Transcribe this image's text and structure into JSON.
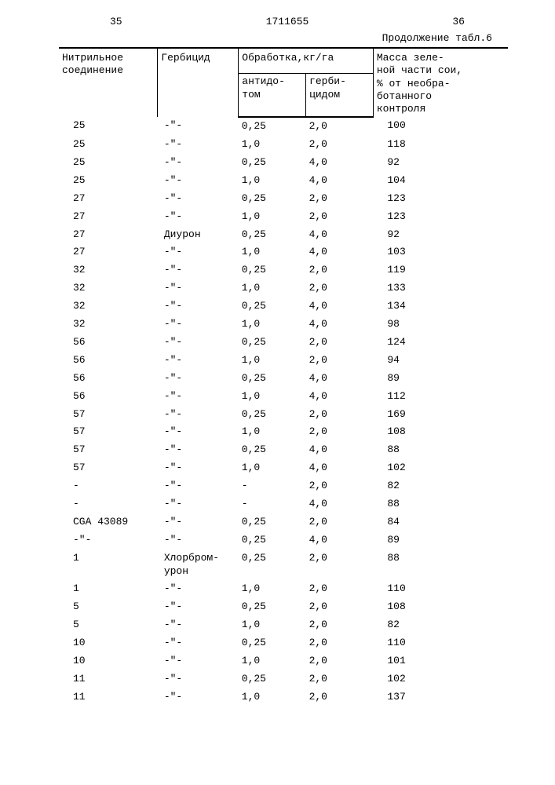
{
  "page_left_num": "35",
  "doc_num": "1711655",
  "page_right_num": "36",
  "continuation": "Продолжение табл.6",
  "headers": {
    "col1": "Нитрильное соединение",
    "col2": "Гербицид",
    "group34": "Обработка,кг/га",
    "col3": "антидо-\nтом",
    "col4": "герби-\nцидом",
    "col5": "Масса зеле-\nной части сои,\n% от необра-\nботанного\nконтроля"
  },
  "rows": [
    {
      "c1": "25",
      "c2": "-\"-",
      "c3": "0,25",
      "c4": "2,0",
      "c5": "100"
    },
    {
      "c1": "25",
      "c2": "-\"-",
      "c3": "1,0",
      "c4": "2,0",
      "c5": "118"
    },
    {
      "c1": "25",
      "c2": "-\"-",
      "c3": "0,25",
      "c4": "4,0",
      "c5": "92"
    },
    {
      "c1": "25",
      "c2": "-\"-",
      "c3": "1,0",
      "c4": "4,0",
      "c5": "104"
    },
    {
      "c1": "27",
      "c2": "-\"-",
      "c3": "0,25",
      "c4": "2,0",
      "c5": "123"
    },
    {
      "c1": "27",
      "c2": "-\"-",
      "c3": "1,0",
      "c4": "2,0",
      "c5": "123"
    },
    {
      "c1": "27",
      "c2": "Диурон",
      "c3": "0,25",
      "c4": "4,0",
      "c5": "92"
    },
    {
      "c1": "27",
      "c2": "-\"-",
      "c3": "1,0",
      "c4": "4,0",
      "c5": "103"
    },
    {
      "c1": "32",
      "c2": "-\"-",
      "c3": "0,25",
      "c4": "2,0",
      "c5": "119"
    },
    {
      "c1": "32",
      "c2": "-\"-",
      "c3": "1,0",
      "c4": "2,0",
      "c5": "133"
    },
    {
      "c1": "32",
      "c2": "-\"-",
      "c3": "0,25",
      "c4": "4,0",
      "c5": "134"
    },
    {
      "c1": "32",
      "c2": "-\"-",
      "c3": "1,0",
      "c4": "4,0",
      "c5": "98"
    },
    {
      "c1": "56",
      "c2": "-\"-",
      "c3": "0,25",
      "c4": "2,0",
      "c5": "124"
    },
    {
      "c1": "56",
      "c2": "-\"-",
      "c3": "1,0",
      "c4": "2,0",
      "c5": "94"
    },
    {
      "c1": "56",
      "c2": "-\"-",
      "c3": "0,25",
      "c4": "4,0",
      "c5": "89"
    },
    {
      "c1": "56",
      "c2": "-\"-",
      "c3": "1,0",
      "c4": "4,0",
      "c5": "112"
    },
    {
      "c1": "57",
      "c2": "-\"-",
      "c3": "0,25",
      "c4": "2,0",
      "c5": "169"
    },
    {
      "c1": "57",
      "c2": "-\"-",
      "c3": "1,0",
      "c4": "2,0",
      "c5": "108"
    },
    {
      "c1": "57",
      "c2": "-\"-",
      "c3": "0,25",
      "c4": "4,0",
      "c5": "88"
    },
    {
      "c1": "57",
      "c2": "-\"-",
      "c3": "1,0",
      "c4": "4,0",
      "c5": "102"
    },
    {
      "c1": "-",
      "c2": "-\"-",
      "c3": "-",
      "c4": "2,0",
      "c5": "82"
    },
    {
      "c1": "-",
      "c2": "-\"-",
      "c3": "-",
      "c4": "4,0",
      "c5": "88"
    },
    {
      "c1": "CGA 43089",
      "c2": "-\"-",
      "c3": "0,25",
      "c4": "2,0",
      "c5": "84"
    },
    {
      "c1": "-\"-",
      "c2": "-\"-",
      "c3": "0,25",
      "c4": "4,0",
      "c5": "89"
    },
    {
      "c1": "1",
      "c2": "Хлорбром-\nурон",
      "c3": "0,25",
      "c4": "2,0",
      "c5": "88"
    },
    {
      "c1": "1",
      "c2": "-\"-",
      "c3": "1,0",
      "c4": "2,0",
      "c5": "110"
    },
    {
      "c1": "5",
      "c2": "-\"-",
      "c3": "0,25",
      "c4": "2,0",
      "c5": "108"
    },
    {
      "c1": "5",
      "c2": "-\"-",
      "c3": "1,0",
      "c4": "2,0",
      "c5": "82"
    },
    {
      "c1": "10",
      "c2": "-\"-",
      "c3": "0,25",
      "c4": "2,0",
      "c5": "110"
    },
    {
      "c1": "10",
      "c2": "-\"-",
      "c3": "1,0",
      "c4": "2,0",
      "c5": "101"
    },
    {
      "c1": "11",
      "c2": "-\"-",
      "c3": "0,25",
      "c4": "2,0",
      "c5": "102"
    },
    {
      "c1": "11",
      "c2": "-\"-",
      "c3": "1,0",
      "c4": "2,0",
      "c5": "137"
    }
  ]
}
